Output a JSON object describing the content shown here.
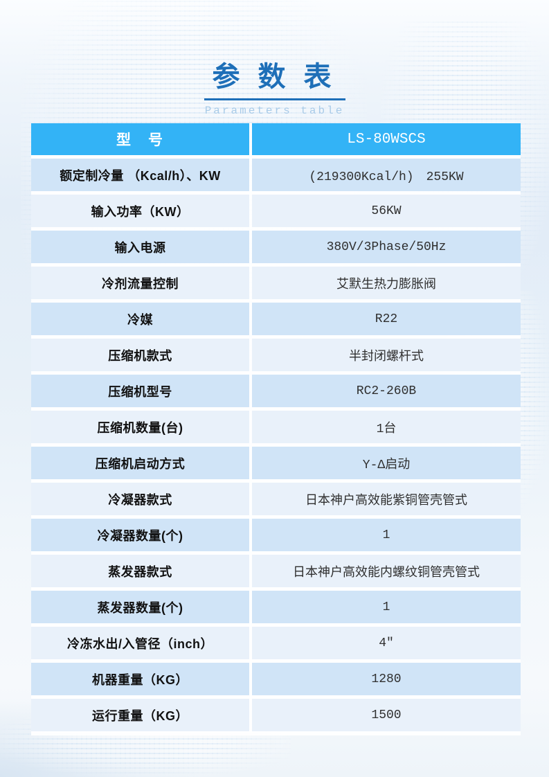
{
  "page": {
    "title": "参 数 表",
    "subtitle": "Parameters table"
  },
  "table": {
    "header": {
      "model_label": "型　号",
      "model_value": "LS-80WSCS"
    },
    "rows": [
      {
        "label": "额定制冷量 （Kcal/h）、KW",
        "value": "(219300Kcal/h)　255KW"
      },
      {
        "label": "输入功率（KW）",
        "value": "56KW"
      },
      {
        "label": "输入电源",
        "value": "380V/3Phase/50Hz"
      },
      {
        "label": "冷剂流量控制",
        "value": "艾默生热力膨胀阀"
      },
      {
        "label": "冷媒",
        "value": "R22"
      },
      {
        "label": "压缩机款式",
        "value": "半封闭螺杆式"
      },
      {
        "label": "压缩机型号",
        "value": "RC2-260B"
      },
      {
        "label": "压缩机数量(台)",
        "value": "1台"
      },
      {
        "label": "压缩机启动方式",
        "value": "Y-Δ启动"
      },
      {
        "label": "冷凝器款式",
        "value": "日本神户高效能紫铜管壳管式"
      },
      {
        "label": "冷凝器数量(个)",
        "value": "1"
      },
      {
        "label": "蒸发器款式",
        "value": "日本神户高效能内螺纹铜管壳管式"
      },
      {
        "label": "蒸发器数量(个)",
        "value": "1"
      },
      {
        "label": "冷冻水出/入管径（inch）",
        "value": "4″"
      },
      {
        "label": "机器重量（KG）",
        "value": "1280"
      },
      {
        "label": "运行重量（KG）",
        "value": "1500"
      }
    ]
  },
  "colors": {
    "header-bg": "#33b3f6",
    "header-text": "#ffffff",
    "row-dark": "#d0e4f7",
    "row-light": "#e9f1fa",
    "label-text": "#111111",
    "value-text": "#2f2f2f",
    "title": "#1e6fb8",
    "subtitle": "#a9cbe8"
  }
}
